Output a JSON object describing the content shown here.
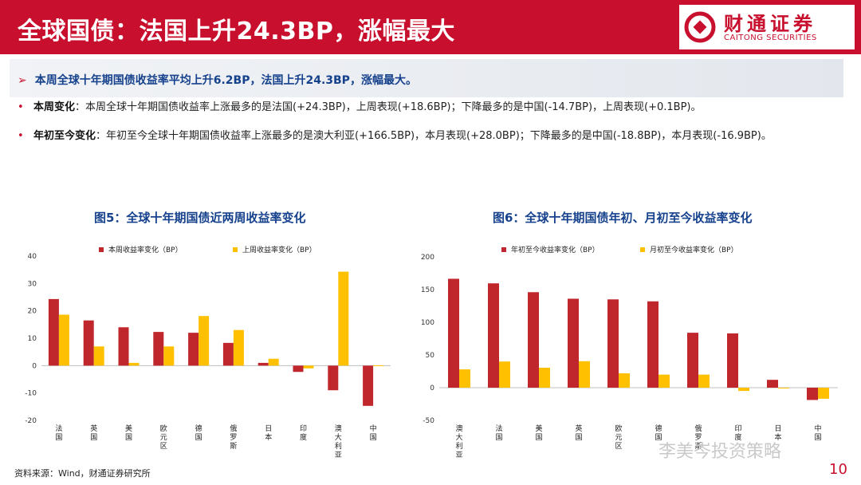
{
  "header": {
    "title": "全球国债：法国上升24.3BP，涨幅最大",
    "logo_cn": "财通证券",
    "logo_en": "CAITONG SECURITIES"
  },
  "summary": "本周全球十年期国债收益率平均上升6.2BP，法国上升24.3BP，涨幅最大。",
  "bullets": [
    {
      "label": "本周变化",
      "text": "：本周全球十年期国债收益率上涨最多的是法国(+24.3BP)，上周表现(+18.6BP)；下降最多的是中国(-14.7BP)，上周表现(+0.1BP)。"
    },
    {
      "label": "年初至今变化",
      "text": "：年初至今全球十年期国债收益率上涨最多的是澳大利亚(+166.5BP)，本月表现(+28.0BP)；下降最多的是中国(-18.8BP)，本月表现(-16.9BP)。"
    }
  ],
  "charts": [
    {
      "title": "图5：全球十年期国债近两周收益率变化"
    },
    {
      "title": "图6：全球十年期国债年初、月初至今收益率变化"
    }
  ],
  "colors": {
    "red": "#c8102e",
    "navy": "#16418c",
    "series1": "#c0272d",
    "series2": "#ffc000"
  },
  "chart_data": [
    {
      "type": "bar",
      "title": "图5：全球十年期国债近两周收益率变化",
      "categories": [
        "法国",
        "英国",
        "美国",
        "欧元区",
        "德国",
        "俄罗斯",
        "日本",
        "印度",
        "澳大利亚",
        "中国"
      ],
      "series": [
        {
          "name": "本周收益率变化（BP）",
          "values": [
            24.3,
            16.5,
            14.0,
            12.3,
            12.0,
            8.3,
            1.0,
            -2.3,
            -9.0,
            -14.7
          ]
        },
        {
          "name": "上周收益率变化（BP）",
          "values": [
            18.6,
            7.0,
            1.0,
            7.0,
            18.1,
            13.0,
            2.5,
            -1.0,
            34.3,
            0.1
          ]
        }
      ],
      "yticks": [
        40,
        30,
        20,
        10,
        0,
        -10,
        -20
      ],
      "ylim": [
        -20,
        40
      ],
      "legend": "top",
      "grid": false
    },
    {
      "type": "bar",
      "title": "图6：全球十年期国债年初、月初至今收益率变化",
      "categories": [
        "澳大利亚",
        "法国",
        "美国",
        "英国",
        "欧元区",
        "德国",
        "俄罗斯",
        "印度",
        "日本",
        "中国"
      ],
      "series": [
        {
          "name": "年初至今收益率变化（BP）",
          "values": [
            166.5,
            159.5,
            146.0,
            136.0,
            135.0,
            132.0,
            84.0,
            83.0,
            12.0,
            -18.8
          ]
        },
        {
          "name": "月初至今收益率变化（BP）",
          "values": [
            28.0,
            40.0,
            30.5,
            40.5,
            22.0,
            20.0,
            20.0,
            -5.0,
            -1.0,
            -16.9
          ]
        }
      ],
      "yticks": [
        200,
        150,
        100,
        50,
        0,
        -50
      ],
      "ylim": [
        -50,
        200
      ],
      "legend": "top",
      "grid": false
    }
  ],
  "footer": {
    "source": "资料来源：Wind，财通证券研究所",
    "watermark": "李美岑投资策略",
    "page": "10"
  }
}
